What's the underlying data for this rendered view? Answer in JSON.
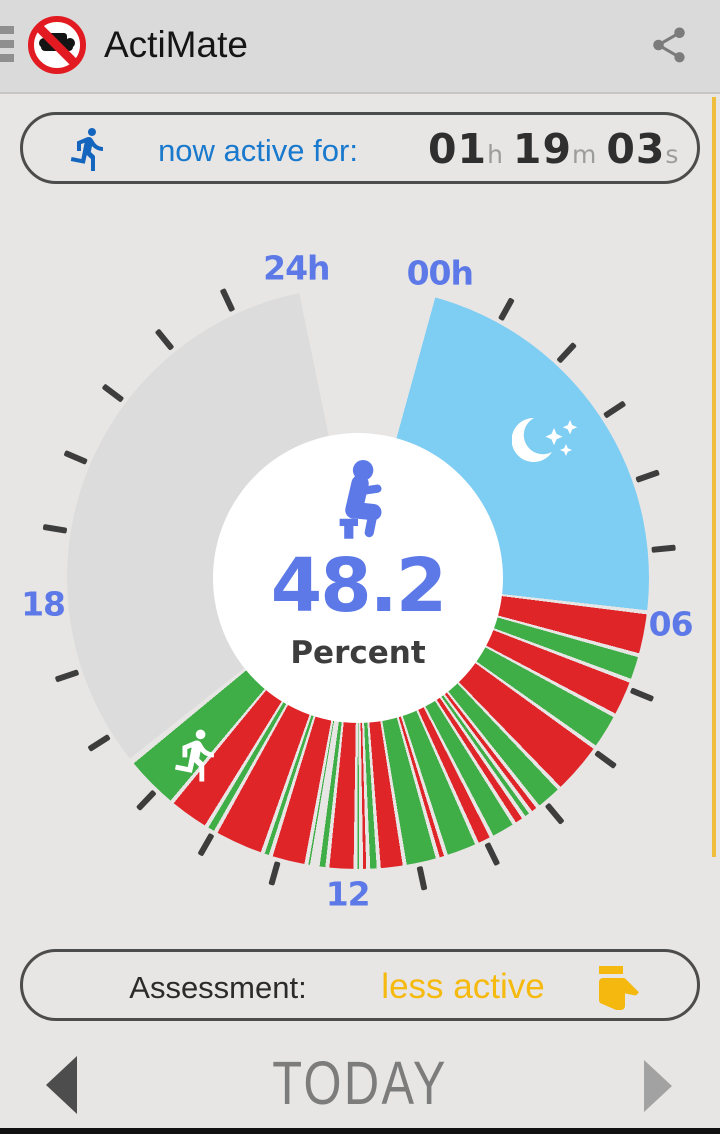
{
  "header": {
    "title": "ActiMate",
    "menu_icon": "hamburger-icon",
    "logo_icon": "no-sitting-logo",
    "share_icon": "share-icon"
  },
  "active_banner": {
    "label": "now active for:",
    "time": {
      "hours": "01",
      "hours_unit": "h",
      "minutes": "19",
      "minutes_unit": "m",
      "seconds": "03",
      "seconds_unit": "s"
    }
  },
  "dial": {
    "center": {
      "value": "48.2",
      "unit": "Percent",
      "icon": "sitting-person-icon"
    },
    "labels": [
      {
        "text": "24h",
        "hour": 24
      },
      {
        "text": "00h",
        "hour": 0
      },
      {
        "text": "06",
        "hour": 6
      },
      {
        "text": "12",
        "hour": 12
      },
      {
        "text": "18",
        "hour": 18
      }
    ],
    "colors": {
      "sleep": "#7ecdf3",
      "sitting": "#e02529",
      "active": "#3fae47",
      "nodata": "#dcdcdc",
      "label_blue": "#5c79e7"
    },
    "config": {
      "start_deg": 15,
      "end_deg": 348.75,
      "deg_per_hour": 13.90625,
      "gap_deg": 0.8,
      "tick_hours": [
        1,
        2,
        3,
        4,
        5,
        7,
        8,
        9,
        10,
        11,
        13,
        14,
        15,
        16,
        17,
        19,
        20,
        21,
        22,
        23
      ],
      "tick_radius": 307,
      "label_radius": 316
    },
    "segments": [
      {
        "type": "sleep",
        "start": 0,
        "end": 5.88
      },
      {
        "type": "sitting",
        "start": 5.88,
        "end": 6.5
      },
      {
        "type": "active",
        "start": 6.5,
        "end": 6.88
      },
      {
        "type": "sitting",
        "start": 6.88,
        "end": 7.42
      },
      {
        "type": "active",
        "start": 7.42,
        "end": 7.95
      },
      {
        "type": "sitting",
        "start": 7.95,
        "end": 8.72
      },
      {
        "type": "active",
        "start": 8.72,
        "end": 9.12
      },
      {
        "type": "sitting",
        "start": 9.12,
        "end": 9.25
      },
      {
        "type": "active",
        "start": 9.25,
        "end": 9.37
      },
      {
        "type": "sitting",
        "start": 9.37,
        "end": 9.53
      },
      {
        "type": "active",
        "start": 9.53,
        "end": 9.9
      },
      {
        "type": "sitting",
        "start": 9.9,
        "end": 10.13
      },
      {
        "type": "active",
        "start": 10.13,
        "end": 10.6
      },
      {
        "type": "sitting",
        "start": 10.6,
        "end": 10.72
      },
      {
        "type": "active",
        "start": 10.72,
        "end": 11.2
      },
      {
        "type": "sitting",
        "start": 11.2,
        "end": 11.57
      },
      {
        "type": "active",
        "start": 11.57,
        "end": 11.72
      },
      {
        "type": "sitting",
        "start": 11.72,
        "end": 11.82
      },
      {
        "type": "active",
        "start": 11.82,
        "end": 11.9
      },
      {
        "type": "sitting",
        "start": 11.9,
        "end": 12.3
      },
      {
        "type": "active",
        "start": 12.3,
        "end": 12.44
      },
      {
        "type": "active",
        "start": 12.52,
        "end": 12.6
      },
      {
        "type": "sitting",
        "start": 12.6,
        "end": 13.12
      },
      {
        "type": "active",
        "start": 13.12,
        "end": 13.24
      },
      {
        "type": "sitting",
        "start": 13.24,
        "end": 13.97
      },
      {
        "type": "active",
        "start": 13.97,
        "end": 14.12
      },
      {
        "type": "sitting",
        "start": 14.12,
        "end": 14.72
      },
      {
        "type": "active",
        "start": 14.72,
        "end": 15.52,
        "icon": "running-person-icon"
      },
      {
        "type": "nodata",
        "start": 15.55,
        "end": 24
      }
    ],
    "sleep_icon": "moon-stars-icon"
  },
  "assessment": {
    "label": "Assessment:",
    "value": "less active",
    "value_color": "#f6b90d",
    "icon": "thumb-sideways-icon"
  },
  "footer": {
    "title": "TODAY",
    "prev_icon": "previous-day-arrow",
    "next_icon": "next-day-arrow"
  }
}
